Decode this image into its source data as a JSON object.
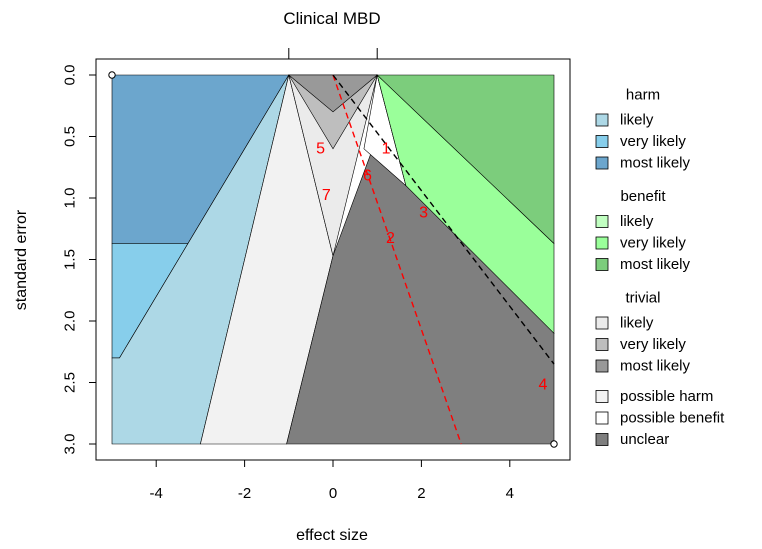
{
  "chart_data": {
    "type": "area",
    "title": "Clinical MBD",
    "xlabel": "effect size",
    "ylabel": "standard error",
    "xlim": [
      -5,
      5
    ],
    "ylim": [
      0,
      3
    ],
    "y_reversed": true,
    "x_ticks": [
      "-4",
      "-2",
      "0",
      "2",
      "4"
    ],
    "y_ticks": [
      "0.0",
      "0.5",
      "1.0",
      "1.5",
      "2.0",
      "2.5",
      "3.0"
    ],
    "top_ticks": [
      -1,
      1
    ],
    "grid": false,
    "legend_position": "right",
    "legend_groups": [
      {
        "title": "harm",
        "entries": [
          {
            "label": "likely",
            "color": "#ADD8E6"
          },
          {
            "label": "very likely",
            "color": "#87CEEB"
          },
          {
            "label": "most likely",
            "color": "#6CA6CD"
          }
        ]
      },
      {
        "title": "benefit",
        "entries": [
          {
            "label": "likely",
            "color": "#C1FFC1"
          },
          {
            "label": "very likely",
            "color": "#9AFF9A"
          },
          {
            "label": "most likely",
            "color": "#7CCD7C"
          }
        ]
      },
      {
        "title": "trivial",
        "entries": [
          {
            "label": "likely",
            "color": "#EBEBEB"
          },
          {
            "label": "very likely",
            "color": "#BEBEBE"
          },
          {
            "label": "most likely",
            "color": "#999999"
          }
        ]
      },
      {
        "title": "",
        "entries": [
          {
            "label": "possible harm",
            "color": "#F2F2F2"
          },
          {
            "label": "possible benefit",
            "color": "#FFFFFF"
          },
          {
            "label": "unclear",
            "color": "#7F7F7F"
          }
        ]
      }
    ],
    "regions": [
      {
        "color": "#6CA6CD",
        "points": [
          [
            -5,
            0
          ],
          [
            -1,
            0
          ],
          [
            -3.25,
            1.37
          ],
          [
            -5,
            1.37
          ]
        ]
      },
      {
        "color": "#87CEEB",
        "points": [
          [
            -5,
            1.37
          ],
          [
            -3.25,
            1.37
          ],
          [
            -1,
            0
          ],
          [
            -4.83,
            2.3
          ],
          [
            -5,
            2.3
          ]
        ]
      },
      {
        "color": "#ADD8E6",
        "points": [
          [
            -5,
            2.3
          ],
          [
            -4.83,
            2.3
          ],
          [
            -1,
            0
          ],
          [
            -3.0,
            3.0
          ],
          [
            -5,
            3.0
          ]
        ]
      },
      {
        "color": "#F2F2F2",
        "points": [
          [
            -1,
            0
          ],
          [
            -3.0,
            3.0
          ],
          [
            -1.05,
            3.0
          ],
          [
            0,
            1.47
          ]
        ]
      },
      {
        "color": "#EBEBEB",
        "points": [
          [
            -1,
            0
          ],
          [
            0,
            1.47
          ],
          [
            1,
            0
          ]
        ]
      },
      {
        "color": "#BEBEBE",
        "points": [
          [
            -1,
            0
          ],
          [
            0,
            0.6
          ],
          [
            1,
            0
          ]
        ]
      },
      {
        "color": "#999999",
        "points": [
          [
            -1,
            0
          ],
          [
            0,
            0.3
          ],
          [
            1,
            0
          ]
        ]
      },
      {
        "color": "#7F7F7F",
        "points": [
          [
            0,
            1.47
          ],
          [
            -1.05,
            3.0
          ],
          [
            5,
            3.0
          ],
          [
            5,
            2.1
          ],
          [
            1,
            0.5
          ]
        ]
      },
      {
        "color": "#FFFFFF",
        "points": [
          [
            1,
            0
          ],
          [
            1.65,
            0.9
          ],
          [
            0.7,
            0.6
          ]
        ]
      },
      {
        "color": "#C1FFC1",
        "points": [
          [
            1,
            0
          ],
          [
            2.7,
            0.85
          ],
          [
            1.65,
            0.9
          ]
        ]
      },
      {
        "color": "#9AFF9A",
        "points": [
          [
            1,
            0
          ],
          [
            5,
            1.37
          ],
          [
            5,
            2.1
          ],
          [
            1.65,
            0.9
          ]
        ]
      },
      {
        "color": "#7CCD7C",
        "points": [
          [
            1,
            0
          ],
          [
            5,
            0
          ],
          [
            5,
            1.37
          ]
        ]
      }
    ],
    "reference_lines": [
      {
        "style": "dashed",
        "color": "#FF0000",
        "points": [
          [
            0,
            0
          ],
          [
            2.9,
            3.0
          ]
        ]
      },
      {
        "style": "dashed",
        "color": "#000000",
        "points": [
          [
            0,
            0
          ],
          [
            5,
            2.35
          ]
        ]
      }
    ],
    "corner_points": [
      [
        -5,
        0
      ],
      [
        5,
        3.0
      ]
    ],
    "annotations": [
      {
        "text": "1",
        "x": 1.2,
        "y": 0.6
      },
      {
        "text": "2",
        "x": 1.3,
        "y": 1.33
      },
      {
        "text": "3",
        "x": 2.05,
        "y": 1.12
      },
      {
        "text": "4",
        "x": 4.75,
        "y": 2.52
      },
      {
        "text": "5",
        "x": -0.28,
        "y": 0.6
      },
      {
        "text": "6",
        "x": 0.78,
        "y": 0.82
      },
      {
        "text": "7",
        "x": -0.15,
        "y": 0.98
      }
    ]
  }
}
